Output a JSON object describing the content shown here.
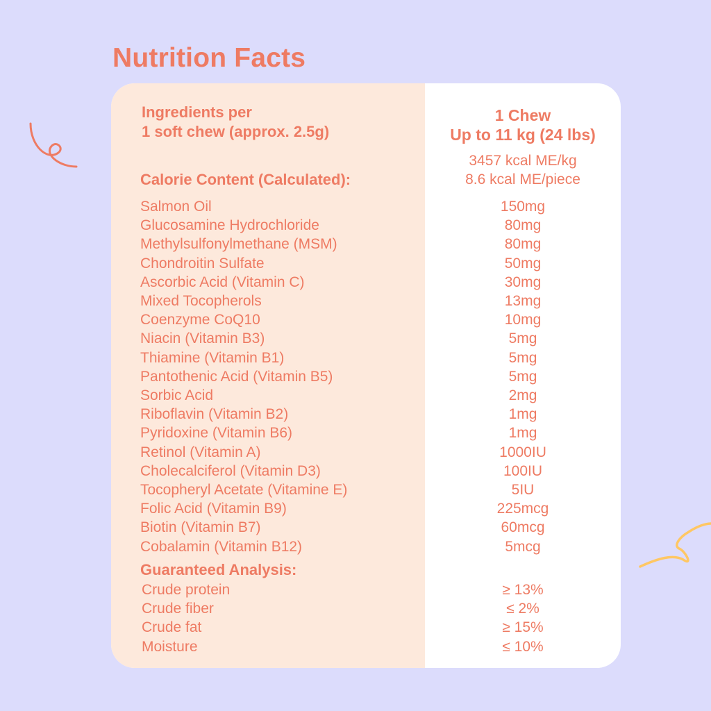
{
  "title": "Nutrition Facts",
  "colors": {
    "background": "#dcdcfc",
    "accent": "#ee7b63",
    "left_panel": "#fde9dc",
    "right_panel": "#ffffff",
    "squiggle_right": "#ffc764"
  },
  "header": {
    "left_line1": "Ingredients per",
    "left_line2": "1 soft chew (approx. 2.5g)",
    "right_line1": "1 Chew",
    "right_line2": "Up to 11 kg (24 lbs)"
  },
  "calorie": {
    "label": "Calorie Content (Calculated):",
    "value1": "3457 kcal ME/kg",
    "value2": "8.6 kcal ME/piece"
  },
  "ingredients": [
    {
      "name": "Salmon Oil",
      "amount": "150mg"
    },
    {
      "name": "Glucosamine Hydrochloride",
      "amount": "80mg"
    },
    {
      "name": "Methylsulfonylmethane (MSM)",
      "amount": "80mg"
    },
    {
      "name": "Chondroitin Sulfate",
      "amount": "50mg"
    },
    {
      "name": "Ascorbic Acid (Vitamin C)",
      "amount": "30mg"
    },
    {
      "name": "Mixed Tocopherols",
      "amount": "13mg"
    },
    {
      "name": "Coenzyme CoQ10",
      "amount": "10mg"
    },
    {
      "name": "Niacin (Vitamin B3)",
      "amount": "5mg"
    },
    {
      "name": "Thiamine (Vitamin B1)",
      "amount": "5mg"
    },
    {
      "name": "Pantothenic Acid (Vitamin B5)",
      "amount": "5mg"
    },
    {
      "name": "Sorbic Acid",
      "amount": "2mg"
    },
    {
      "name": "Riboflavin (Vitamin B2)",
      "amount": "1mg"
    },
    {
      "name": "Pyridoxine (Vitamin B6)",
      "amount": "1mg"
    },
    {
      "name": "Retinol (Vitamin A)",
      "amount": "1000IU"
    },
    {
      "name": "Cholecalciferol (Vitamin D3)",
      "amount": "100IU"
    },
    {
      "name": "Tocopheryl Acetate (Vitamine E)",
      "amount": "5IU"
    },
    {
      "name": "Folic Acid (Vitamin B9)",
      "amount": "225mcg"
    },
    {
      "name": "Biotin (Vitamin B7)",
      "amount": "60mcg"
    },
    {
      "name": "Cobalamin (Vitamin B12)",
      "amount": "5mcg"
    }
  ],
  "analysis": {
    "label": "Guaranteed Analysis:",
    "items": [
      {
        "name": "Crude protein",
        "amount": "≥ 13%"
      },
      {
        "name": "Crude fiber",
        "amount": "≤ 2%"
      },
      {
        "name": "Crude fat",
        "amount": "≥ 15%"
      },
      {
        "name": "Moisture",
        "amount": "≤ 10%"
      }
    ]
  },
  "decorations": [
    "squiggle-left",
    "squiggle-right"
  ]
}
